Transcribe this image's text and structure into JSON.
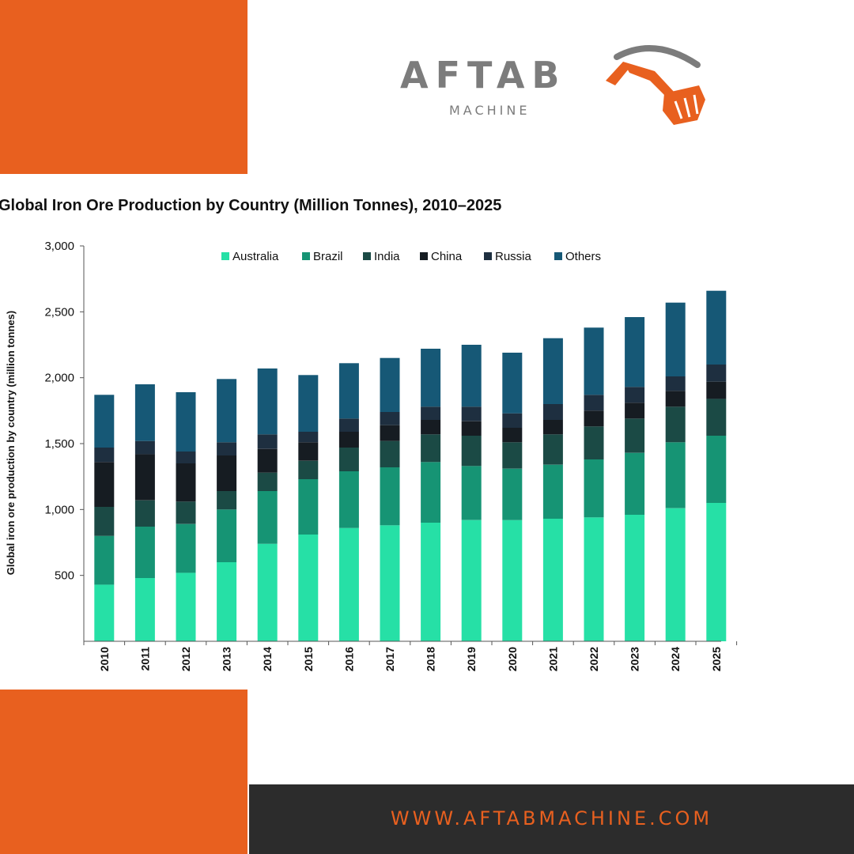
{
  "brand": {
    "name": "AFTAB",
    "tagline": "MACHINE",
    "colors": {
      "orange": "#E8601F",
      "gray": "#7C7C7C",
      "dark": "#2C2C2C"
    }
  },
  "footer": {
    "url": "WWW.AFTABMACHINE.COM"
  },
  "chart_data": {
    "type": "bar",
    "stacked": true,
    "title": "Global Iron Ore Production by Country (Million Tonnes), 2010–2025",
    "ylabel": "Global iron ore production by country (million tonnes)",
    "xlabel": "",
    "ylim": [
      0,
      3000
    ],
    "yticks": [
      500,
      1000,
      1500,
      2000,
      2500,
      3000
    ],
    "ytick_labels": [
      "500",
      "1,000",
      "1,500",
      "2,000",
      "2,500",
      "3,000"
    ],
    "legend_position": "top",
    "grid": false,
    "categories": [
      "2010",
      "2011",
      "2012",
      "2013",
      "2014",
      "2015",
      "2016",
      "2017",
      "2018",
      "2019",
      "2020",
      "2021",
      "2022",
      "2023",
      "2024",
      "2025"
    ],
    "series": [
      {
        "name": "Australia",
        "color": "#26E0A6",
        "values": [
          430,
          480,
          520,
          600,
          740,
          810,
          860,
          880,
          900,
          920,
          920,
          930,
          940,
          960,
          1010,
          1050
        ]
      },
      {
        "name": "Brazil",
        "color": "#169474",
        "values": [
          370,
          390,
          370,
          400,
          400,
          420,
          430,
          440,
          460,
          410,
          390,
          410,
          440,
          470,
          500,
          510
        ]
      },
      {
        "name": "India",
        "color": "#1B4A45",
        "values": [
          220,
          200,
          170,
          140,
          140,
          140,
          180,
          200,
          210,
          230,
          200,
          230,
          250,
          260,
          270,
          280
        ]
      },
      {
        "name": "China",
        "color": "#161C22",
        "values": [
          340,
          350,
          290,
          270,
          180,
          140,
          120,
          120,
          110,
          110,
          110,
          110,
          120,
          120,
          120,
          130
        ]
      },
      {
        "name": "Russia",
        "color": "#1E2F40",
        "values": [
          110,
          100,
          90,
          100,
          110,
          80,
          100,
          100,
          100,
          110,
          110,
          120,
          120,
          120,
          110,
          130
        ]
      },
      {
        "name": "Others",
        "color": "#165876",
        "values": [
          400,
          430,
          450,
          480,
          500,
          430,
          420,
          410,
          440,
          470,
          460,
          500,
          510,
          530,
          560,
          560
        ]
      }
    ]
  }
}
